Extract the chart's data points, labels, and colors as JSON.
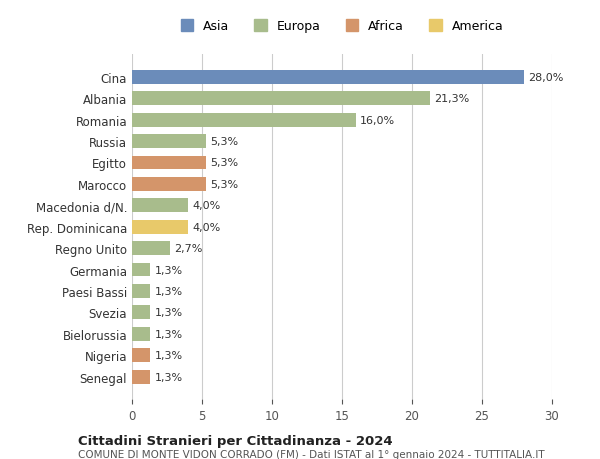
{
  "countries": [
    "Cina",
    "Albania",
    "Romania",
    "Russia",
    "Egitto",
    "Marocco",
    "Macedonia d/N.",
    "Rep. Dominicana",
    "Regno Unito",
    "Germania",
    "Paesi Bassi",
    "Svezia",
    "Bielorussia",
    "Nigeria",
    "Senegal"
  ],
  "values": [
    28.0,
    21.3,
    16.0,
    5.3,
    5.3,
    5.3,
    4.0,
    4.0,
    2.7,
    1.3,
    1.3,
    1.3,
    1.3,
    1.3,
    1.3
  ],
  "labels": [
    "28,0%",
    "21,3%",
    "16,0%",
    "5,3%",
    "5,3%",
    "5,3%",
    "4,0%",
    "4,0%",
    "2,7%",
    "1,3%",
    "1,3%",
    "1,3%",
    "1,3%",
    "1,3%",
    "1,3%"
  ],
  "colors": [
    "#6b8cba",
    "#a8bc8c",
    "#a8bc8c",
    "#a8bc8c",
    "#d4956a",
    "#d4956a",
    "#a8bc8c",
    "#e8c96a",
    "#a8bc8c",
    "#a8bc8c",
    "#a8bc8c",
    "#a8bc8c",
    "#a8bc8c",
    "#d4956a",
    "#d4956a"
  ],
  "legend_labels": [
    "Asia",
    "Europa",
    "Africa",
    "America"
  ],
  "legend_colors": [
    "#6b8cba",
    "#a8bc8c",
    "#d4956a",
    "#e8c96a"
  ],
  "xlim": [
    0,
    30
  ],
  "xticks": [
    0,
    5,
    10,
    15,
    20,
    25,
    30
  ],
  "title": "Cittadini Stranieri per Cittadinanza - 2024",
  "subtitle": "COMUNE DI MONTE VIDON CORRADO (FM) - Dati ISTAT al 1° gennaio 2024 - TUTTITALIA.IT",
  "bg_color": "#ffffff",
  "grid_color": "#cccccc"
}
